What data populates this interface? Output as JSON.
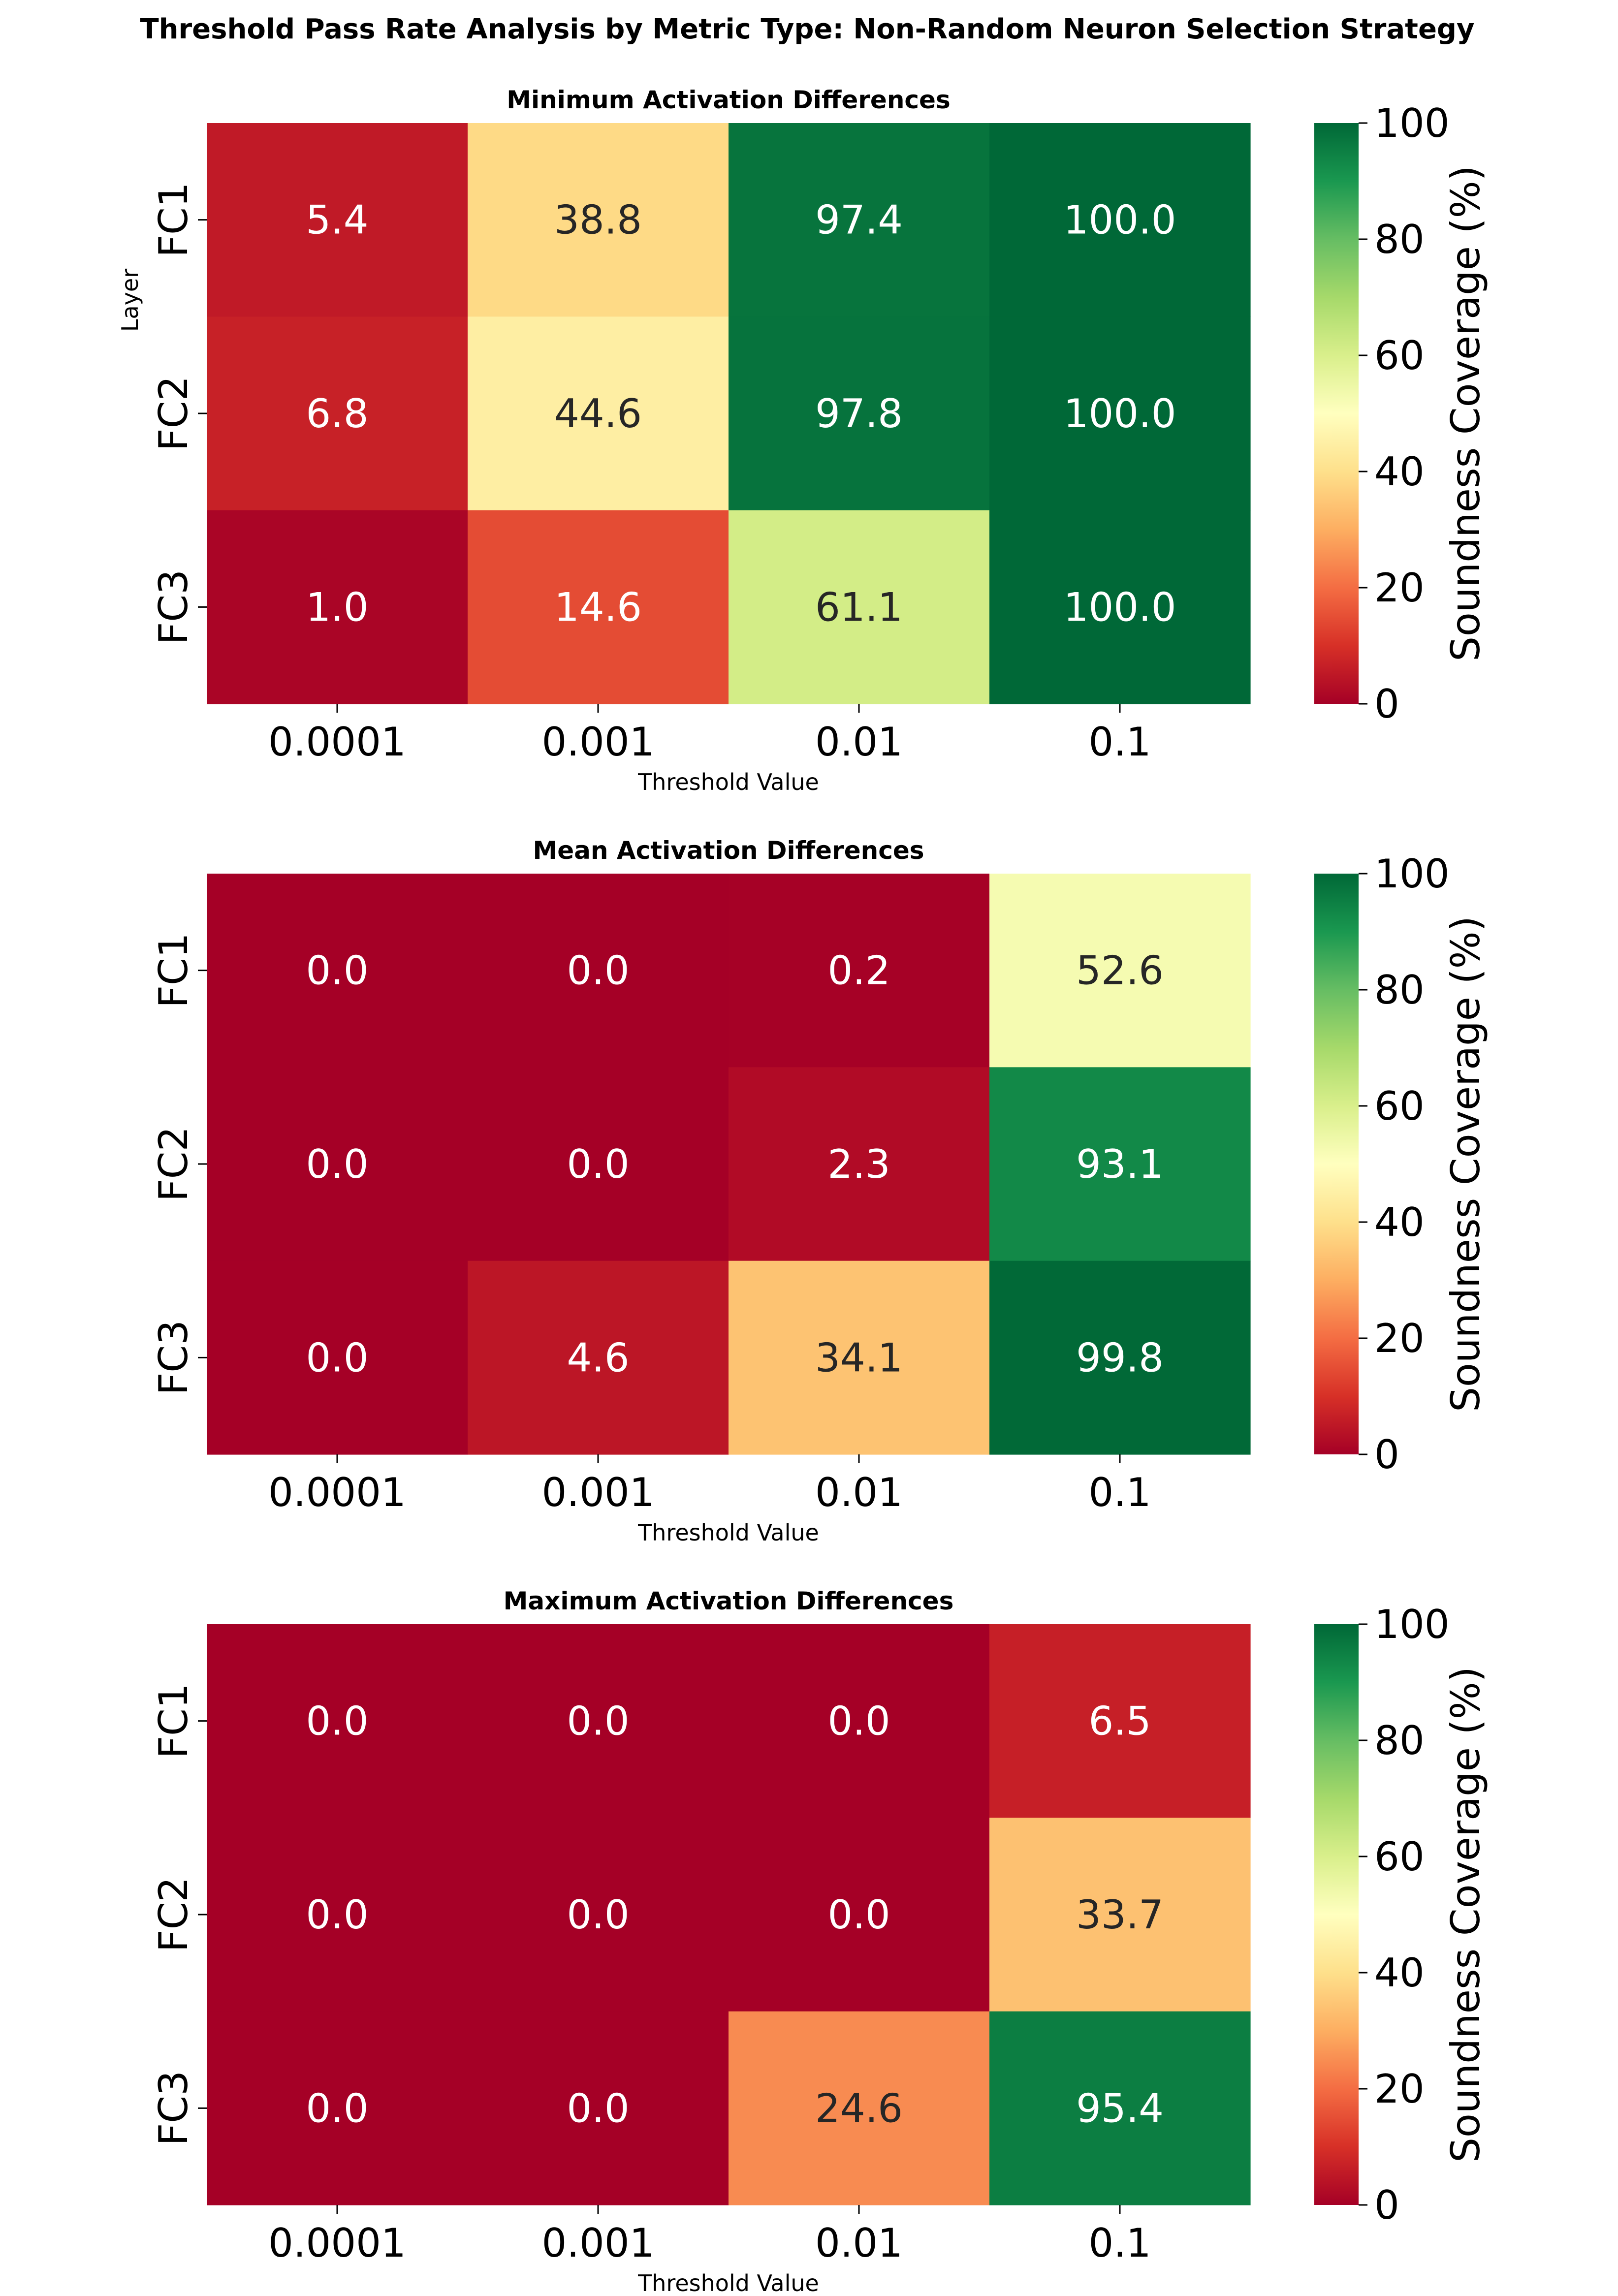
{
  "figure": {
    "title": "Threshold Pass Rate Analysis by Metric Type: Non-Random Neuron Selection Strategy"
  },
  "chart_data": [
    {
      "type": "heatmap",
      "title": "Minimum Activation Differences",
      "xlabel": "Threshold Value",
      "ylabel": "Layer",
      "x_categories": [
        "0.0001",
        "0.001",
        "0.01",
        "0.1"
      ],
      "y_categories": [
        "FC1",
        "FC2",
        "FC3"
      ],
      "values": [
        [
          5.4,
          38.8,
          97.4,
          100.0
        ],
        [
          6.8,
          44.6,
          97.8,
          100.0
        ],
        [
          1.0,
          14.6,
          61.1,
          100.0
        ]
      ],
      "colorbar_label": "Soundness Coverage (%)",
      "colorbar_range": [
        0,
        100
      ],
      "colorbar_ticks": [
        0,
        20,
        40,
        60,
        80,
        100
      ],
      "colormap": "RdYlGn"
    },
    {
      "type": "heatmap",
      "title": "Mean Activation Differences",
      "xlabel": "Threshold Value",
      "ylabel": "",
      "x_categories": [
        "0.0001",
        "0.001",
        "0.01",
        "0.1"
      ],
      "y_categories": [
        "FC1",
        "FC2",
        "FC3"
      ],
      "values": [
        [
          0.0,
          0.0,
          0.2,
          52.6
        ],
        [
          0.0,
          0.0,
          2.3,
          93.1
        ],
        [
          0.0,
          4.6,
          34.1,
          99.8
        ]
      ],
      "colorbar_label": "Soundness Coverage (%)",
      "colorbar_range": [
        0,
        100
      ],
      "colorbar_ticks": [
        0,
        20,
        40,
        60,
        80,
        100
      ],
      "colormap": "RdYlGn"
    },
    {
      "type": "heatmap",
      "title": "Maximum Activation Differences",
      "xlabel": "Threshold Value",
      "ylabel": "",
      "x_categories": [
        "0.0001",
        "0.001",
        "0.01",
        "0.1"
      ],
      "y_categories": [
        "FC1",
        "FC2",
        "FC3"
      ],
      "values": [
        [
          0.0,
          0.0,
          0.0,
          6.5
        ],
        [
          0.0,
          0.0,
          0.0,
          33.7
        ],
        [
          0.0,
          0.0,
          24.6,
          95.4
        ]
      ],
      "colorbar_label": "Soundness Coverage (%)",
      "colorbar_range": [
        0,
        100
      ],
      "colorbar_ticks": [
        0,
        20,
        40,
        60,
        80,
        100
      ],
      "colormap": "RdYlGn"
    }
  ]
}
